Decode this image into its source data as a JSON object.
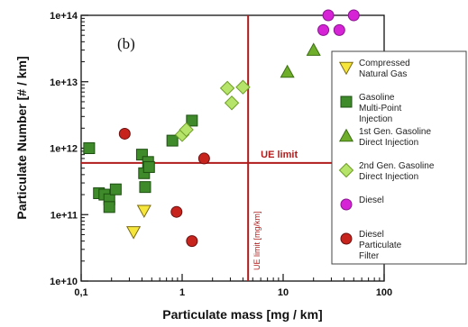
{
  "chart_data": {
    "type": "scatter",
    "panel_label": "(b)",
    "xlabel": "Particulate mass [mg / km]",
    "ylabel": "Particulate Number [# / km]",
    "x_scale": "log",
    "y_scale": "log",
    "xlim": [
      0.1,
      100
    ],
    "ylim": [
      10000000000.0,
      100000000000000.0
    ],
    "x_ticks": [
      {
        "value": 0.1,
        "label": "0,1"
      },
      {
        "value": 1,
        "label": "1"
      },
      {
        "value": 10,
        "label": "10"
      },
      {
        "value": 100,
        "label": "100"
      }
    ],
    "y_ticks": [
      {
        "value": 10000000000.0,
        "label": "1e+10"
      },
      {
        "value": 100000000000.0,
        "label": "1e+11"
      },
      {
        "value": 1000000000000.0,
        "label": "1e+12"
      },
      {
        "value": 10000000000000.0,
        "label": "1e+13"
      },
      {
        "value": 100000000000000.0,
        "label": "1e+14"
      }
    ],
    "grid": false,
    "legend_position": "right",
    "limit_color": "#b01c1c",
    "limits": {
      "horizontal": {
        "value": 600000000000.0,
        "label": "UE limit"
      },
      "vertical": {
        "value": 4.5,
        "label": "UE limit [mg/km]"
      }
    },
    "series": [
      {
        "name": "Compressed Natural Gas",
        "marker": "triangle-down",
        "fill": "#f6e63c",
        "stroke": "#7a6a10",
        "points": [
          [
            0.42,
            115000000000.0
          ],
          [
            0.33,
            55000000000.0
          ]
        ]
      },
      {
        "name": "Gasoline Multi-Point Injection",
        "marker": "square",
        "fill": "#3f8a2a",
        "stroke": "#1d4f12",
        "points": [
          [
            0.12,
            1000000000000.0
          ],
          [
            0.15,
            210000000000.0
          ],
          [
            0.17,
            200000000000.0
          ],
          [
            0.19,
            170000000000.0
          ],
          [
            0.19,
            130000000000.0
          ],
          [
            0.22,
            240000000000.0
          ],
          [
            0.4,
            800000000000.0
          ],
          [
            0.42,
            420000000000.0
          ],
          [
            0.43,
            260000000000.0
          ],
          [
            0.46,
            620000000000.0
          ],
          [
            0.47,
            520000000000.0
          ],
          [
            0.8,
            1300000000000.0
          ],
          [
            1.25,
            2600000000000.0
          ]
        ]
      },
      {
        "name": "1st Gen. Gasoline Direct Injection",
        "marker": "triangle-up",
        "fill": "#6fae2b",
        "stroke": "#3b6e12",
        "points": [
          [
            11,
            14000000000000.0
          ],
          [
            20,
            30000000000000.0
          ]
        ]
      },
      {
        "name": "2nd Gen. Gasoline Direct Injection",
        "marker": "diamond",
        "fill": "#b6e36a",
        "stroke": "#6e9e26",
        "points": [
          [
            1.0,
            1600000000000.0
          ],
          [
            1.1,
            1900000000000.0
          ],
          [
            2.8,
            8000000000000.0
          ],
          [
            3.1,
            4800000000000.0
          ],
          [
            4.0,
            8300000000000.0
          ]
        ]
      },
      {
        "name": "Diesel",
        "marker": "circle",
        "fill": "#d623d6",
        "stroke": "#8a1490",
        "points": [
          [
            28,
            100000000000000.0
          ],
          [
            50,
            100000000000000.0
          ],
          [
            25,
            60000000000000.0
          ],
          [
            36,
            60000000000000.0
          ]
        ]
      },
      {
        "name": "Diesel Particulate Filter",
        "marker": "circle",
        "fill": "#c8241e",
        "stroke": "#6a1010",
        "points": [
          [
            0.27,
            1650000000000.0
          ],
          [
            0.88,
            110000000000.0
          ],
          [
            1.65,
            700000000000.0
          ],
          [
            1.25,
            40000000000.0
          ]
        ]
      }
    ]
  }
}
